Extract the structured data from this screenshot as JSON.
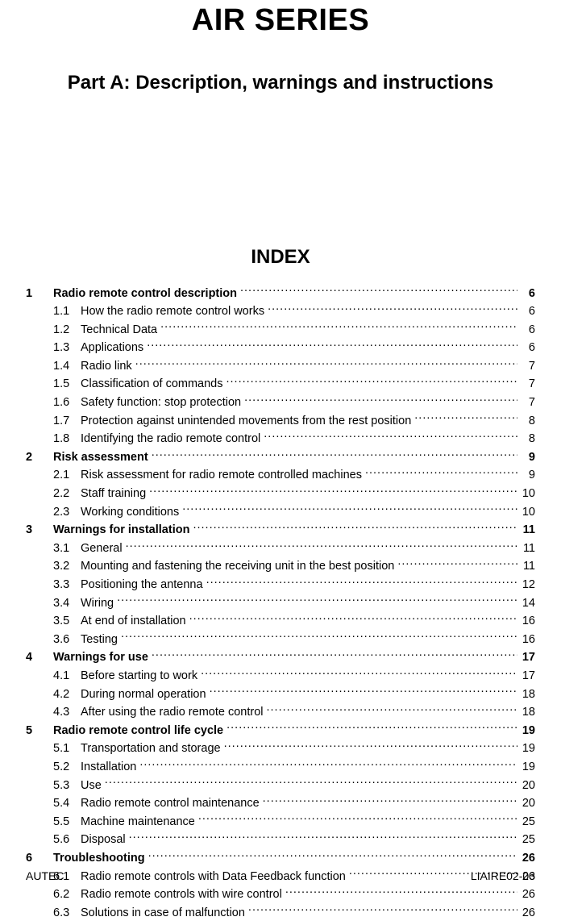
{
  "title": "AIR SERIES",
  "subtitle": "Part A: Description, warnings and instructions",
  "index_heading": "INDEX",
  "toc": [
    {
      "n": "1",
      "label": "Radio remote control description",
      "page": "6",
      "section": true
    },
    {
      "n": "1.1",
      "label": "How the radio remote control works",
      "page": "6"
    },
    {
      "n": "1.2",
      "label": "Technical Data",
      "page": "6"
    },
    {
      "n": "1.3",
      "label": "Applications",
      "page": "6"
    },
    {
      "n": "1.4",
      "label": "Radio link",
      "page": "7"
    },
    {
      "n": "1.5",
      "label": "Classification of commands",
      "page": "7"
    },
    {
      "n": "1.6",
      "label": "Safety function: stop protection",
      "page": "7"
    },
    {
      "n": "1.7",
      "label": "Protection against unintended movements from the rest position",
      "page": "8"
    },
    {
      "n": "1.8",
      "label": "Identifying the radio remote control",
      "page": "8"
    },
    {
      "n": "2",
      "label": "Risk assessment",
      "page": "9",
      "section": true
    },
    {
      "n": "2.1",
      "label": "Risk assessment for radio remote controlled machines",
      "page": "9"
    },
    {
      "n": "2.2",
      "label": "Staff training",
      "page": "10"
    },
    {
      "n": "2.3",
      "label": "Working conditions",
      "page": "10"
    },
    {
      "n": "3",
      "label": "Warnings for installation",
      "page": "11",
      "section": true
    },
    {
      "n": "3.1",
      "label": "General",
      "page": "11"
    },
    {
      "n": "3.2",
      "label": "Mounting and fastening the receiving unit in the best position",
      "page": "11"
    },
    {
      "n": "3.3",
      "label": "Positioning the antenna",
      "page": "12"
    },
    {
      "n": "3.4",
      "label": "Wiring",
      "page": "14"
    },
    {
      "n": "3.5",
      "label": "At end of installation",
      "page": "16"
    },
    {
      "n": "3.6",
      "label": "Testing",
      "page": "16"
    },
    {
      "n": "4",
      "label": "Warnings for use",
      "page": "17",
      "section": true
    },
    {
      "n": "4.1",
      "label": "Before starting to work",
      "page": "17"
    },
    {
      "n": "4.2",
      "label": "During normal operation",
      "page": "18"
    },
    {
      "n": "4.3",
      "label": "After using the radio remote control",
      "page": "18"
    },
    {
      "n": "5",
      "label": "Radio remote control life cycle",
      "page": "19",
      "section": true
    },
    {
      "n": "5.1",
      "label": "Transportation and storage",
      "page": "19"
    },
    {
      "n": "5.2",
      "label": "Installation",
      "page": "19"
    },
    {
      "n": "5.3",
      "label": "Use",
      "page": "20"
    },
    {
      "n": "5.4",
      "label": "Radio remote control maintenance",
      "page": "20"
    },
    {
      "n": "5.5",
      "label": "Machine maintenance",
      "page": "25"
    },
    {
      "n": "5.6",
      "label": "Disposal",
      "page": "25"
    },
    {
      "n": "6",
      "label": "Troubleshooting",
      "page": "26",
      "section": true
    },
    {
      "n": "6.1",
      "label": "Radio remote controls with Data Feedback function",
      "page": "26"
    },
    {
      "n": "6.2",
      "label": "Radio remote controls with wire control",
      "page": "26"
    },
    {
      "n": "6.3",
      "label": "Solutions in case of malfunction",
      "page": "26"
    }
  ],
  "footer": {
    "left": "AUTEC",
    "right": "LIAIRE02-03"
  },
  "style": {
    "page_bg": "#ffffff",
    "text_color": "#000000",
    "title_fontsize": 38,
    "subtitle_fontsize": 24,
    "index_heading_fontsize": 24,
    "toc_fontsize": 14.5,
    "footer_fontsize": 14,
    "font_family": "Arial, Helvetica, sans-serif"
  }
}
